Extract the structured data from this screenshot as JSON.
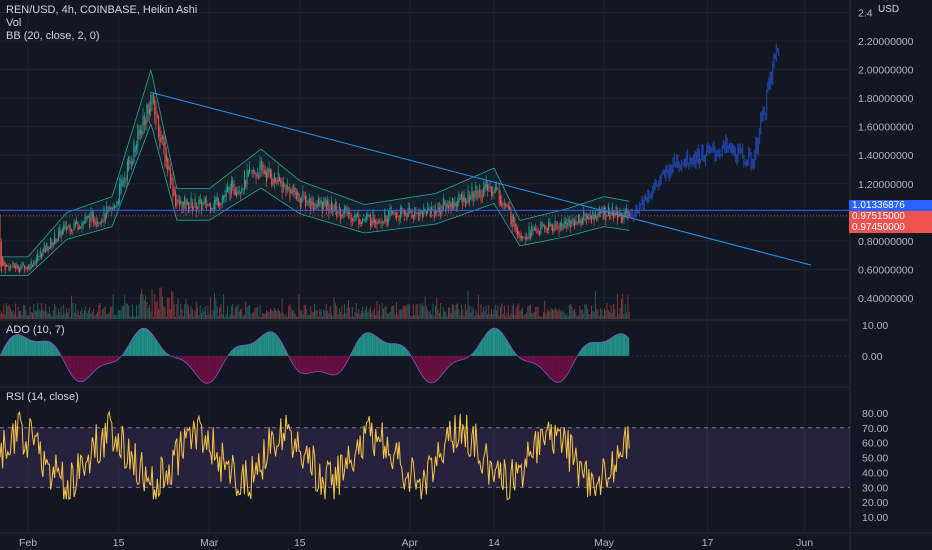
{
  "header": {
    "symbol_line": "REN/USD, 4h, COINBASE, Heikin Ashi",
    "vol_label": "Vol",
    "bb_label": "BB (20, close, 2, 0)",
    "currency": "USD"
  },
  "ado_label": "ADO (10, 7)",
  "rsi_label": "RSI (14, close)",
  "price_pills": [
    {
      "label": "1.01336876",
      "color": "#2962ff"
    },
    {
      "label": "0.97515000",
      "color": "#ef5350"
    },
    {
      "label": "0.97450000",
      "color": "#ef5350"
    }
  ],
  "chart_data": [
    {
      "type": "candlestick",
      "title": "REN/USD, 4h, COINBASE, Heikin Ashi",
      "y_ticks": [
        "2.4",
        "2.20000000",
        "2.00000000",
        "1.80000000",
        "1.60000000",
        "1.40000000",
        "1.20000000",
        "0.80000000",
        "0.60000000",
        "0.40000000"
      ],
      "x_ticks": [
        "Feb",
        "15",
        "Mar",
        "15",
        "Apr",
        "14",
        "May",
        "17",
        "Jun"
      ],
      "ylim": [
        0.3,
        2.45
      ],
      "approx_close_path": [
        {
          "t": "Feb 1",
          "v": 0.62
        },
        {
          "t": "Feb 7",
          "v": 0.9
        },
        {
          "t": "Feb 14",
          "v": 1.0
        },
        {
          "t": "Feb 20",
          "v": 1.8
        },
        {
          "t": "Feb 24",
          "v": 1.05
        },
        {
          "t": "Mar 1",
          "v": 1.05
        },
        {
          "t": "Mar 9",
          "v": 1.3
        },
        {
          "t": "Mar 15",
          "v": 1.1
        },
        {
          "t": "Mar 25",
          "v": 0.95
        },
        {
          "t": "Apr 5",
          "v": 1.02
        },
        {
          "t": "Apr 14",
          "v": 1.18
        },
        {
          "t": "Apr 18",
          "v": 0.85
        },
        {
          "t": "Apr 25",
          "v": 0.92
        },
        {
          "t": "May 1",
          "v": 1.0
        },
        {
          "t": "May 5",
          "v": 0.97
        }
      ],
      "projection": [
        {
          "t": "May 5",
          "v": 0.97
        },
        {
          "t": "May 12",
          "v": 1.35
        },
        {
          "t": "May 20",
          "v": 1.45
        },
        {
          "t": "May 24",
          "v": 1.35
        },
        {
          "t": "May 28",
          "v": 2.2
        }
      ],
      "trendline": {
        "from": {
          "t": "Feb 20",
          "v": 1.84
        },
        "to": {
          "t": "Jun 2",
          "v": 0.63
        }
      },
      "horizontal_line": 1.01336876
    },
    {
      "type": "area",
      "title": "ADO (10, 7)",
      "y_ticks": [
        "10.00",
        "0.00"
      ]
    },
    {
      "type": "line",
      "title": "RSI (14, close)",
      "y_ticks": [
        "80.00",
        "70.00",
        "60.00",
        "50.00",
        "40.00",
        "30.00",
        "20.00",
        "10.00"
      ],
      "ylim": [
        0,
        90
      ],
      "bands": [
        30,
        70
      ]
    }
  ]
}
